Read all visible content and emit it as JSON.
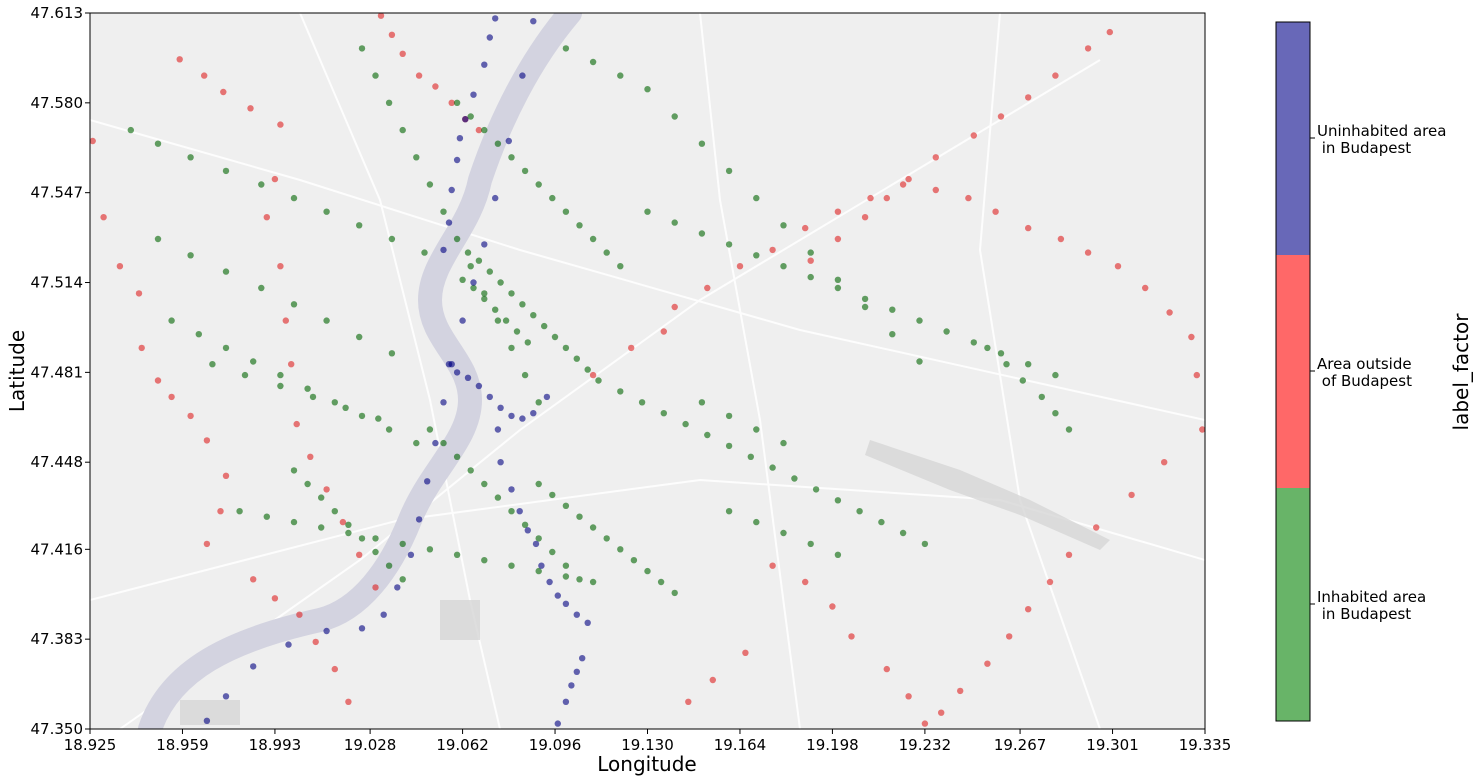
{
  "chart_data": {
    "type": "scatter",
    "xlabel": "Longitude",
    "ylabel": "Latitude",
    "xlim": [
      18.925,
      19.335
    ],
    "ylim": [
      47.35,
      47.613
    ],
    "x_ticks": [
      "18.925",
      "18.959",
      "18.993",
      "19.028",
      "19.062",
      "19.096",
      "19.130",
      "19.164",
      "19.198",
      "19.232",
      "19.267",
      "19.301",
      "19.335"
    ],
    "y_ticks": [
      "47.350",
      "47.383",
      "47.416",
      "47.448",
      "47.481",
      "47.514",
      "47.547",
      "47.580",
      "47.613"
    ],
    "grid": false,
    "basemap": "light grey street map",
    "colorbar": {
      "label": "label_factor",
      "position": "right",
      "categories": [
        {
          "line1": "Uninhabited area",
          "line2": " in Budapest",
          "color": "#6868b8"
        },
        {
          "line1": "Area outside",
          "line2": " of Budapest",
          "color": "#ff6868"
        },
        {
          "line1": "Inhabited area",
          "line2": " in Budapest",
          "color": "#68b468"
        }
      ]
    },
    "series": [
      {
        "category": "Uninhabited area in Budapest",
        "color": "#000080",
        "x": [
          18.968,
          18.975,
          18.985,
          18.998,
          19.012,
          19.025,
          19.033,
          19.038,
          19.043,
          19.046,
          19.049,
          19.052,
          19.055,
          19.058,
          19.062,
          19.066,
          19.07,
          19.074,
          19.079,
          19.084,
          19.088,
          19.055,
          19.057,
          19.058,
          19.06,
          19.061,
          19.063,
          19.066,
          19.07,
          19.072,
          19.074,
          19.075,
          19.076,
          19.08,
          19.083,
          19.086,
          19.089,
          19.091,
          19.094,
          19.097,
          19.1,
          19.104,
          19.108,
          19.106,
          19.104,
          19.102,
          19.1,
          19.097,
          19.093,
          19.088,
          19.084,
          19.08,
          19.076,
          19.072,
          19.068,
          19.064,
          19.06,
          19.057
        ],
        "y": [
          47.353,
          47.362,
          47.373,
          47.381,
          47.386,
          47.387,
          47.392,
          47.402,
          47.414,
          47.427,
          47.441,
          47.455,
          47.47,
          47.484,
          47.5,
          47.514,
          47.528,
          47.545,
          47.566,
          47.59,
          47.61,
          47.526,
          47.536,
          47.548,
          47.559,
          47.567,
          47.574,
          47.583,
          47.594,
          47.604,
          47.611,
          47.46,
          47.448,
          47.438,
          47.43,
          47.423,
          47.418,
          47.41,
          47.404,
          47.399,
          47.396,
          47.392,
          47.389,
          47.376,
          47.371,
          47.366,
          47.36,
          47.352,
          47.472,
          47.466,
          47.464,
          47.465,
          47.468,
          47.472,
          47.476,
          47.479,
          47.481,
          47.484
        ]
      },
      {
        "category": "Area outside of Budapest",
        "color": "#dd2020",
        "x": [
          18.926,
          18.93,
          18.936,
          18.943,
          18.944,
          18.95,
          18.955,
          18.962,
          18.968,
          18.975,
          18.973,
          18.968,
          18.985,
          18.993,
          19.002,
          19.008,
          19.015,
          19.02,
          19.032,
          19.036,
          19.04,
          19.046,
          19.052,
          19.058,
          19.063,
          19.068,
          18.958,
          18.967,
          18.974,
          18.984,
          18.995,
          18.993,
          18.99,
          18.995,
          18.997,
          18.999,
          19.001,
          19.006,
          19.012,
          19.018,
          19.024,
          19.03,
          19.11,
          19.124,
          19.136,
          19.14,
          19.152,
          19.164,
          19.176,
          19.188,
          19.2,
          19.212,
          19.224,
          19.236,
          19.248,
          19.258,
          19.27,
          19.282,
          19.292,
          19.303,
          19.313,
          19.322,
          19.33,
          19.332,
          19.334,
          19.32,
          19.308,
          19.295,
          19.285,
          19.278,
          19.27,
          19.263,
          19.255,
          19.245,
          19.238,
          19.232,
          19.226,
          19.218,
          19.205,
          19.198,
          19.188,
          19.176,
          19.166,
          19.154,
          19.145,
          19.3,
          19.292,
          19.28,
          19.27,
          19.26,
          19.25,
          19.236,
          19.226,
          19.218,
          19.21,
          19.2,
          19.19
        ],
        "y": [
          47.566,
          47.538,
          47.52,
          47.51,
          47.49,
          47.478,
          47.472,
          47.465,
          47.456,
          47.443,
          47.43,
          47.418,
          47.405,
          47.398,
          47.392,
          47.382,
          47.372,
          47.36,
          47.612,
          47.605,
          47.598,
          47.59,
          47.586,
          47.58,
          47.574,
          47.57,
          47.596,
          47.59,
          47.584,
          47.578,
          47.572,
          47.552,
          47.538,
          47.52,
          47.5,
          47.484,
          47.462,
          47.45,
          47.438,
          47.426,
          47.414,
          47.402,
          47.48,
          47.49,
          47.496,
          47.505,
          47.512,
          47.52,
          47.526,
          47.534,
          47.54,
          47.545,
          47.55,
          47.548,
          47.545,
          47.54,
          47.534,
          47.53,
          47.525,
          47.52,
          47.512,
          47.503,
          47.494,
          47.48,
          47.46,
          47.448,
          47.436,
          47.424,
          47.414,
          47.404,
          47.394,
          47.384,
          47.374,
          47.364,
          47.356,
          47.352,
          47.362,
          47.372,
          47.384,
          47.395,
          47.404,
          47.41,
          47.378,
          47.368,
          47.36,
          47.606,
          47.6,
          47.59,
          47.582,
          47.575,
          47.568,
          47.56,
          47.552,
          47.545,
          47.538,
          47.53,
          47.522
        ]
      },
      {
        "category": "Inhabited area in Budapest",
        "color": "#006400",
        "x": [
          18.94,
          18.95,
          18.962,
          18.975,
          18.988,
          19.0,
          19.012,
          19.024,
          19.036,
          19.048,
          18.95,
          18.962,
          18.975,
          18.988,
          19.0,
          19.012,
          19.024,
          19.036,
          18.97,
          18.982,
          18.995,
          19.007,
          19.019,
          19.031,
          19.0,
          19.005,
          19.01,
          19.015,
          19.02,
          19.025,
          19.03,
          19.035,
          19.04,
          19.025,
          19.03,
          19.035,
          19.04,
          19.045,
          19.05,
          19.055,
          19.06,
          19.065,
          19.07,
          19.075,
          19.08,
          19.085,
          19.09,
          19.062,
          19.066,
          19.07,
          19.074,
          19.078,
          19.082,
          19.086,
          19.064,
          19.068,
          19.072,
          19.076,
          19.08,
          19.084,
          19.088,
          19.092,
          19.096,
          19.1,
          19.104,
          19.108,
          19.112,
          19.12,
          19.128,
          19.136,
          19.144,
          19.152,
          19.16,
          19.168,
          19.176,
          19.184,
          19.192,
          19.2,
          19.208,
          19.216,
          19.224,
          19.232,
          19.13,
          19.14,
          19.15,
          19.16,
          19.17,
          19.18,
          19.19,
          19.2,
          19.21,
          19.22,
          19.23,
          19.24,
          19.25,
          19.26,
          19.27,
          19.28,
          19.1,
          19.11,
          19.12,
          19.13,
          19.14,
          19.15,
          19.16,
          19.17,
          19.18,
          19.19,
          19.2,
          19.21,
          19.22,
          19.23,
          19.05,
          19.055,
          19.06,
          19.065,
          19.07,
          19.075,
          19.08,
          19.085,
          19.09,
          19.095,
          19.1,
          19.105,
          19.06,
          19.065,
          19.07,
          19.075,
          19.08,
          19.085,
          19.09,
          19.095,
          19.1,
          19.105,
          19.11,
          19.115,
          19.12,
          19.09,
          19.095,
          19.1,
          19.105,
          19.11,
          19.115,
          19.12,
          19.125,
          19.13,
          19.135,
          19.14,
          19.15,
          19.16,
          19.17,
          19.18,
          19.16,
          19.17,
          19.18,
          19.19,
          19.2,
          19.255,
          19.262,
          19.268,
          19.275,
          19.28,
          19.285,
          18.955,
          18.965,
          18.975,
          18.985,
          18.995,
          19.005,
          19.015,
          19.025,
          19.035,
          19.045,
          18.98,
          18.99,
          19.0,
          19.01,
          19.02,
          19.03,
          19.04,
          19.05,
          19.06,
          19.07,
          19.08,
          19.09,
          19.1,
          19.11
        ],
        "y": [
          47.57,
          47.565,
          47.56,
          47.555,
          47.55,
          47.545,
          47.54,
          47.535,
          47.53,
          47.525,
          47.53,
          47.524,
          47.518,
          47.512,
          47.506,
          47.5,
          47.494,
          47.488,
          47.484,
          47.48,
          47.476,
          47.472,
          47.468,
          47.464,
          47.445,
          47.44,
          47.435,
          47.43,
          47.425,
          47.42,
          47.415,
          47.41,
          47.405,
          47.6,
          47.59,
          47.58,
          47.57,
          47.56,
          47.55,
          47.54,
          47.53,
          47.52,
          47.51,
          47.5,
          47.49,
          47.48,
          47.47,
          47.515,
          47.512,
          47.508,
          47.504,
          47.5,
          47.496,
          47.492,
          47.525,
          47.522,
          47.518,
          47.514,
          47.51,
          47.506,
          47.502,
          47.498,
          47.494,
          47.49,
          47.486,
          47.482,
          47.478,
          47.474,
          47.47,
          47.466,
          47.462,
          47.458,
          47.454,
          47.45,
          47.446,
          47.442,
          47.438,
          47.434,
          47.43,
          47.426,
          47.422,
          47.418,
          47.54,
          47.536,
          47.532,
          47.528,
          47.524,
          47.52,
          47.516,
          47.512,
          47.508,
          47.504,
          47.5,
          47.496,
          47.492,
          47.488,
          47.484,
          47.48,
          47.6,
          47.595,
          47.59,
          47.585,
          47.575,
          47.565,
          47.555,
          47.545,
          47.535,
          47.525,
          47.515,
          47.505,
          47.495,
          47.485,
          47.46,
          47.455,
          47.45,
          47.445,
          47.44,
          47.435,
          47.43,
          47.425,
          47.42,
          47.415,
          47.41,
          47.405,
          47.58,
          47.575,
          47.57,
          47.565,
          47.56,
          47.555,
          47.55,
          47.545,
          47.54,
          47.535,
          47.53,
          47.525,
          47.52,
          47.44,
          47.436,
          47.432,
          47.428,
          47.424,
          47.42,
          47.416,
          47.412,
          47.408,
          47.404,
          47.4,
          47.47,
          47.465,
          47.46,
          47.455,
          47.43,
          47.426,
          47.422,
          47.418,
          47.414,
          47.49,
          47.484,
          47.478,
          47.472,
          47.466,
          47.46,
          47.5,
          47.495,
          47.49,
          47.485,
          47.48,
          47.475,
          47.47,
          47.465,
          47.46,
          47.455,
          47.43,
          47.428,
          47.426,
          47.424,
          47.422,
          47.42,
          47.418,
          47.416,
          47.414,
          47.412,
          47.41,
          47.408,
          47.406,
          47.404
        ]
      }
    ]
  }
}
